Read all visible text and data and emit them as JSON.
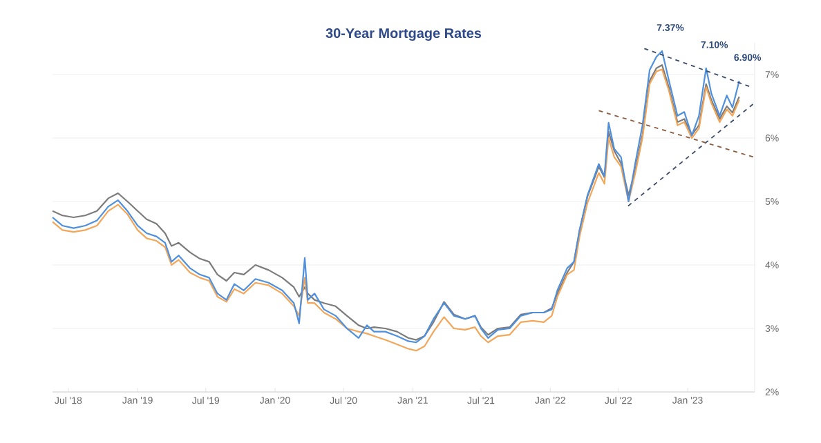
{
  "chart_data": {
    "type": "line",
    "title": "30-Year Mortgage Rates",
    "x": [
      "2018-05-20",
      "2018-06-15",
      "2018-07-15",
      "2018-08-15",
      "2018-09-15",
      "2018-10-15",
      "2018-11-10",
      "2018-12-05",
      "2019-01-01",
      "2019-01-25",
      "2019-02-20",
      "2019-03-15",
      "2019-04-01",
      "2019-04-20",
      "2019-05-20",
      "2019-06-15",
      "2019-07-10",
      "2019-08-01",
      "2019-08-25",
      "2019-09-15",
      "2019-10-10",
      "2019-11-10",
      "2019-12-15",
      "2020-01-20",
      "2020-02-20",
      "2020-03-05",
      "2020-03-20",
      "2020-03-28",
      "2020-04-15",
      "2020-05-10",
      "2020-06-10",
      "2020-07-10",
      "2020-08-10",
      "2020-09-01",
      "2020-09-20",
      "2020-10-20",
      "2020-11-20",
      "2020-12-20",
      "2021-01-10",
      "2021-02-01",
      "2021-02-25",
      "2021-03-25",
      "2021-04-20",
      "2021-05-20",
      "2021-06-15",
      "2021-07-01",
      "2021-07-20",
      "2021-08-15",
      "2021-09-15",
      "2021-10-15",
      "2021-11-15",
      "2021-12-15",
      "2022-01-05",
      "2022-01-20",
      "2022-02-15",
      "2022-03-05",
      "2022-03-20",
      "2022-04-10",
      "2022-05-10",
      "2022-05-25",
      "2022-06-05",
      "2022-06-20",
      "2022-07-08",
      "2022-07-28",
      "2022-08-15",
      "2022-09-03",
      "2022-09-22",
      "2022-10-10",
      "2022-10-25",
      "2022-11-12",
      "2022-12-05",
      "2022-12-23",
      "2023-01-12",
      "2023-01-31",
      "2023-02-19",
      "2023-03-05",
      "2023-03-27",
      "2023-04-15",
      "2023-04-30",
      "2023-05-18"
    ],
    "series": [
      {
        "color": "#7b7b7b",
        "values": [
          4.85,
          4.78,
          4.75,
          4.78,
          4.85,
          5.05,
          5.13,
          5.0,
          4.85,
          4.72,
          4.65,
          4.5,
          4.3,
          4.35,
          4.2,
          4.1,
          4.05,
          3.85,
          3.75,
          3.88,
          3.85,
          4.0,
          3.92,
          3.8,
          3.65,
          3.5,
          3.65,
          3.55,
          3.45,
          3.4,
          3.35,
          3.2,
          3.05,
          3.0,
          3.02,
          3.0,
          2.95,
          2.85,
          2.82,
          2.88,
          3.1,
          3.42,
          3.22,
          3.15,
          3.2,
          3.02,
          2.9,
          3.0,
          3.02,
          3.22,
          3.25,
          3.25,
          3.32,
          3.55,
          3.88,
          4.05,
          4.55,
          5.08,
          5.55,
          5.38,
          6.1,
          5.8,
          5.6,
          5.1,
          5.5,
          6.05,
          6.9,
          7.1,
          7.15,
          6.8,
          6.25,
          6.3,
          6.05,
          6.2,
          6.85,
          6.6,
          6.3,
          6.5,
          6.4,
          6.65
        ]
      },
      {
        "color": "#f2a65a",
        "values": [
          4.68,
          4.55,
          4.52,
          4.55,
          4.62,
          4.85,
          4.95,
          4.8,
          4.55,
          4.42,
          4.38,
          4.28,
          4.0,
          4.08,
          3.88,
          3.8,
          3.75,
          3.5,
          3.42,
          3.62,
          3.55,
          3.72,
          3.68,
          3.55,
          3.35,
          3.2,
          3.8,
          3.4,
          3.4,
          3.25,
          3.15,
          3.0,
          2.95,
          2.92,
          2.88,
          2.82,
          2.75,
          2.68,
          2.65,
          2.72,
          2.95,
          3.18,
          3.0,
          2.98,
          3.02,
          2.88,
          2.78,
          2.88,
          2.9,
          3.1,
          3.12,
          3.1,
          3.2,
          3.5,
          3.85,
          3.92,
          4.45,
          4.98,
          5.45,
          5.28,
          6.0,
          5.7,
          5.55,
          5.0,
          5.45,
          6.0,
          6.85,
          7.05,
          7.08,
          6.75,
          6.2,
          6.25,
          6.0,
          6.15,
          6.8,
          6.55,
          6.25,
          6.45,
          6.35,
          6.6
        ]
      },
      {
        "color": "#4f8fdc",
        "values": [
          4.75,
          4.62,
          4.58,
          4.62,
          4.7,
          4.92,
          5.02,
          4.85,
          4.62,
          4.5,
          4.45,
          4.35,
          4.05,
          4.15,
          3.95,
          3.85,
          3.8,
          3.55,
          3.45,
          3.7,
          3.6,
          3.78,
          3.72,
          3.6,
          3.4,
          3.08,
          4.11,
          3.45,
          3.55,
          3.3,
          3.2,
          3.0,
          2.85,
          3.05,
          2.95,
          2.95,
          2.88,
          2.8,
          2.78,
          2.88,
          3.15,
          3.4,
          3.2,
          3.15,
          3.2,
          3.0,
          2.85,
          2.98,
          3.0,
          3.2,
          3.25,
          3.25,
          3.3,
          3.6,
          3.95,
          4.05,
          4.55,
          5.1,
          5.59,
          5.4,
          6.24,
          5.83,
          5.7,
          5.0,
          5.61,
          6.2,
          7.07,
          7.28,
          7.37,
          6.91,
          6.35,
          6.41,
          6.04,
          6.35,
          7.1,
          6.7,
          6.35,
          6.67,
          6.48,
          6.9
        ]
      },
      {
        "type": "line",
        "line_style": "dashed",
        "color": "#3b4a66",
        "x": [
          "2022-09-08",
          "2023-06-20"
        ],
        "values": [
          7.41,
          6.8
        ]
      },
      {
        "type": "line",
        "line_style": "dashed",
        "color": "#3b4a66",
        "x": [
          "2022-07-27",
          "2023-06-25"
        ],
        "values": [
          4.93,
          6.54
        ]
      },
      {
        "type": "line",
        "line_style": "dashed",
        "color": "#8a5a3c",
        "x": [
          "2022-05-10",
          "2023-06-25"
        ],
        "values": [
          6.43,
          5.7
        ]
      }
    ],
    "line_style": "solid",
    "marker": "none",
    "grid": "y",
    "xlim": [
      "2018-05-20",
      "2023-06-28"
    ],
    "xticks": [
      {
        "value": "2018-07-01",
        "label": "Jul '18"
      },
      {
        "value": "2019-01-01",
        "label": "Jan '19"
      },
      {
        "value": "2019-07-01",
        "label": "Jul '19"
      },
      {
        "value": "2020-01-01",
        "label": "Jan '20"
      },
      {
        "value": "2020-07-01",
        "label": "Jul '20"
      },
      {
        "value": "2021-01-01",
        "label": "Jan '21"
      },
      {
        "value": "2021-07-01",
        "label": "Jul '21"
      },
      {
        "value": "2022-01-01",
        "label": "Jan '22"
      },
      {
        "value": "2022-07-01",
        "label": "Jul '22"
      },
      {
        "value": "2023-01-01",
        "label": "Jan '23"
      }
    ],
    "ylim": [
      2,
      7.5
    ],
    "yticks": [
      {
        "value": 2,
        "label": "2%"
      },
      {
        "value": 3,
        "label": "3%"
      },
      {
        "value": 4,
        "label": "4%"
      },
      {
        "value": 5,
        "label": "5%"
      },
      {
        "value": 6,
        "label": "6%"
      },
      {
        "value": 7,
        "label": "7%"
      }
    ],
    "annotations": [
      {
        "text": "7.37%",
        "x": "2022-10-25",
        "y": 7.37
      },
      {
        "text": "7.10%",
        "x": "2023-02-19",
        "y": 7.1
      },
      {
        "text": "6.90%",
        "x": "2023-05-18",
        "y": 6.9
      }
    ]
  }
}
